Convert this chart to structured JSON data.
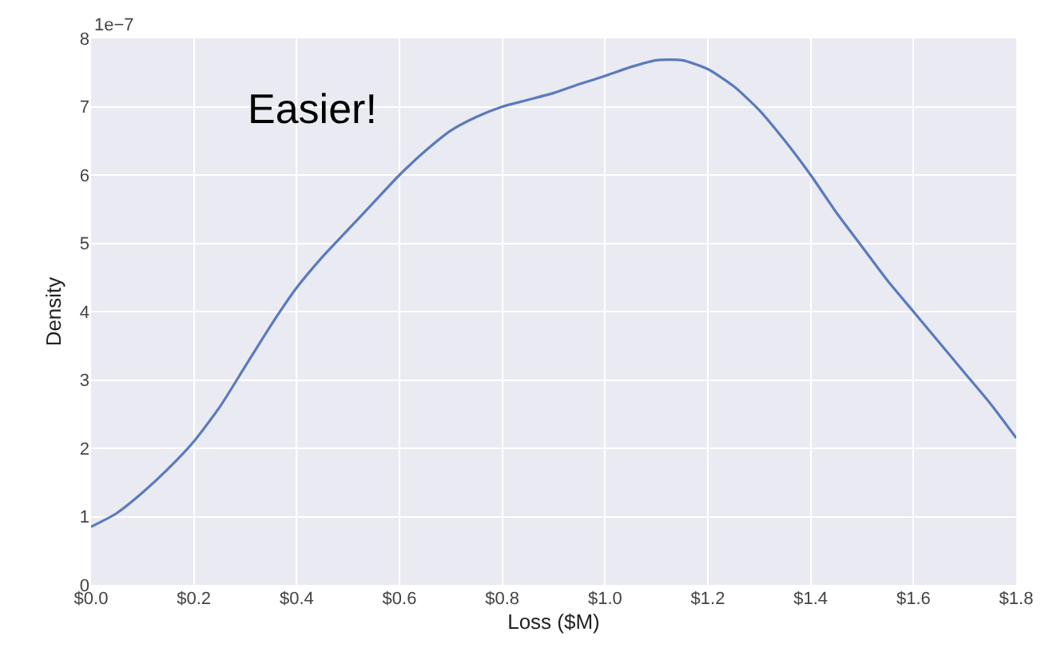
{
  "chart_data": {
    "type": "line",
    "xlabel": "Loss ($M)",
    "ylabel": "Density",
    "annotations": [
      "1e−7",
      "Easier!"
    ],
    "x": [
      0,
      0.05,
      0.1,
      0.15,
      0.2,
      0.25,
      0.3,
      0.35,
      0.4,
      0.45,
      0.5,
      0.55,
      0.6,
      0.65,
      0.7,
      0.75,
      0.8,
      0.85,
      0.9,
      0.95,
      1.0,
      1.05,
      1.1,
      1.15,
      1.2,
      1.25,
      1.3,
      1.35,
      1.4,
      1.45,
      1.5,
      1.55,
      1.6,
      1.65,
      1.7,
      1.75,
      1.8
    ],
    "series": [
      {
        "color": "#5a7bbd",
        "values": [
          0.85,
          1.05,
          1.35,
          1.7,
          2.1,
          2.6,
          3.2,
          3.8,
          4.35,
          4.8,
          5.2,
          5.6,
          6.0,
          6.35,
          6.65,
          6.85,
          7.0,
          7.1,
          7.2,
          7.33,
          7.45,
          7.58,
          7.68,
          7.68,
          7.55,
          7.3,
          6.95,
          6.5,
          6.0,
          5.45,
          4.95,
          4.45,
          4.0,
          3.55,
          3.1,
          2.65,
          2.15
        ]
      }
    ],
    "xlim": [
      0,
      1.8
    ],
    "ylim": [
      0,
      8
    ],
    "xticks": [
      {
        "value": 0,
        "label": "$0.0"
      },
      {
        "value": 0.2,
        "label": "$0.2"
      },
      {
        "value": 0.4,
        "label": "$0.4"
      },
      {
        "value": 0.6,
        "label": "$0.6"
      },
      {
        "value": 0.8,
        "label": "$0.8"
      },
      {
        "value": 1.0,
        "label": "$1.0"
      },
      {
        "value": 1.2,
        "label": "$1.2"
      },
      {
        "value": 1.4,
        "label": "$1.4"
      },
      {
        "value": 1.6,
        "label": "$1.6"
      },
      {
        "value": 1.8,
        "label": "$1.8"
      }
    ],
    "yticks": [
      0,
      1,
      2,
      3,
      4,
      5,
      6,
      7,
      8
    ],
    "grid": true,
    "marker": "none",
    "line_style": "solid"
  }
}
